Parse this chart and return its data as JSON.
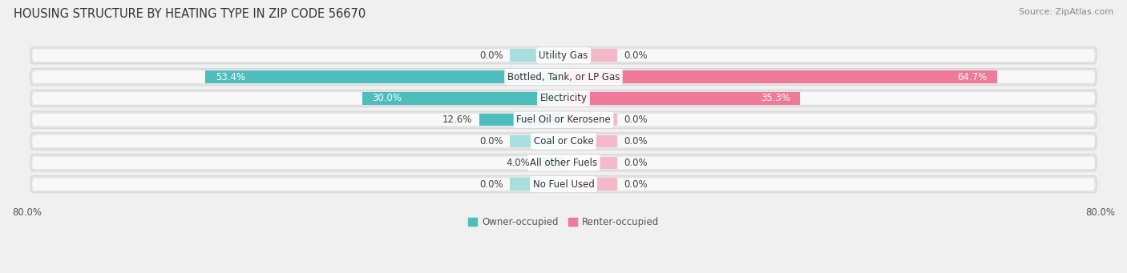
{
  "title": "Housing Structure by Heating Type in Zip Code 56670",
  "source_text": "Source: ZipAtlas.com",
  "categories": [
    "Utility Gas",
    "Bottled, Tank, or LP Gas",
    "Electricity",
    "Fuel Oil or Kerosene",
    "Coal or Coke",
    "All other Fuels",
    "No Fuel Used"
  ],
  "owner_values": [
    0.0,
    53.4,
    30.0,
    12.6,
    0.0,
    4.0,
    0.0
  ],
  "renter_values": [
    0.0,
    64.7,
    35.3,
    0.0,
    0.0,
    0.0,
    0.0
  ],
  "owner_color": "#4dbdbd",
  "renter_color": "#f07898",
  "owner_zero_color": "#a8dede",
  "renter_zero_color": "#f5b8ca",
  "owner_label": "Owner-occupied",
  "renter_label": "Renter-occupied",
  "xlim_left": -80,
  "xlim_right": 80,
  "zero_stub": 8.0,
  "background_color": "#f0f0f0",
  "bar_bg_color": "#e2e2e2",
  "bar_bg_inner_color": "#f8f8f8",
  "title_fontsize": 10.5,
  "source_fontsize": 8,
  "label_fontsize": 8.5,
  "category_fontsize": 8.5,
  "tick_fontsize": 8.5
}
